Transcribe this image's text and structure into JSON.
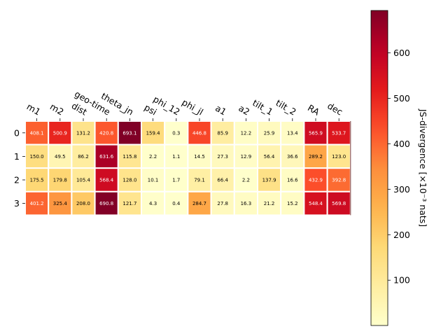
{
  "chart_data": {
    "type": "heatmap",
    "columns": [
      "m1",
      "m2",
      "dist",
      "geo-time",
      "theta_jn",
      "psi",
      "phi_12",
      "phi_jl",
      "a1",
      "a2",
      "tilt_1",
      "tilt_2",
      "RA",
      "dec"
    ],
    "rows": [
      "0",
      "1",
      "2",
      "3"
    ],
    "values": [
      [
        408.1,
        500.9,
        131.2,
        420.8,
        693.1,
        159.4,
        0.3,
        446.8,
        85.9,
        12.2,
        25.9,
        13.4,
        565.9,
        533.7
      ],
      [
        150.0,
        49.5,
        86.2,
        631.6,
        115.8,
        2.2,
        1.1,
        14.5,
        27.3,
        12.9,
        56.4,
        36.6,
        289.2,
        123.0
      ],
      [
        175.5,
        179.8,
        105.4,
        568.4,
        128.0,
        10.1,
        1.7,
        79.1,
        66.4,
        2.2,
        137.9,
        16.6,
        432.9,
        392.8
      ],
      [
        401.2,
        325.4,
        208.0,
        690.8,
        121.7,
        4.3,
        0.4,
        284.7,
        27.8,
        16.3,
        21.2,
        15.2,
        548.4,
        569.8
      ]
    ],
    "colorbar": {
      "label": "JS-divergence [×10⁻³ nats]",
      "ticks": [
        100,
        200,
        300,
        400,
        500,
        600
      ],
      "range": [
        0.3,
        693.1
      ],
      "colormap": "YlOrRd"
    },
    "grid": false
  }
}
